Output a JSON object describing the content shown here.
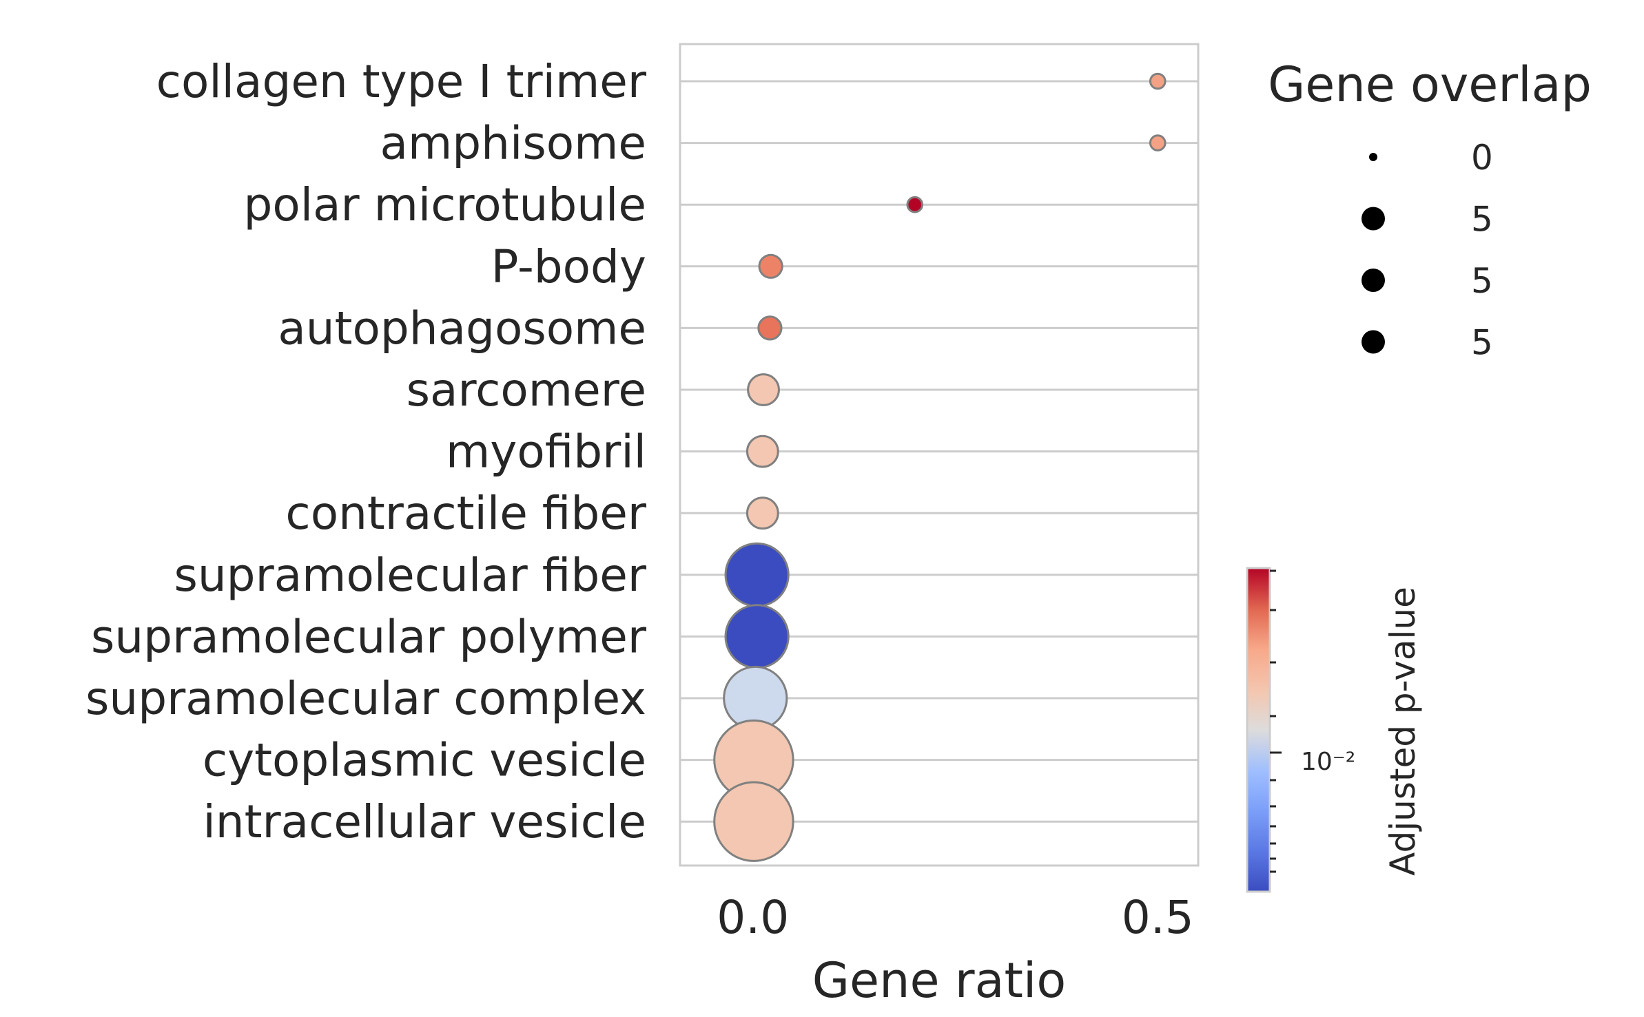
{
  "chart_data": {
    "type": "scatter",
    "subtype": "dot-plot",
    "xlabel": "Gene ratio",
    "xticks": [
      {
        "value": 0.0,
        "label": "0.0"
      },
      {
        "value": 0.5,
        "label": "0.5"
      }
    ],
    "xlim": [
      -0.09,
      0.55
    ],
    "categories": [
      "collagen type I trimer",
      "amphisome",
      "polar microtubule",
      "P-body",
      "autophagosome",
      "sarcomere",
      "myofibril",
      "contractile fiber",
      "supramolecular fiber",
      "supramolecular polymer",
      "supramolecular complex",
      "cytoplasmic vesicle",
      "intracellular vesicle"
    ],
    "points": [
      {
        "term": "collagen type I trimer",
        "gene_ratio": 0.5,
        "overlap": 1,
        "adj_p": 0.05,
        "color": "#f4a285"
      },
      {
        "term": "amphisome",
        "gene_ratio": 0.5,
        "overlap": 1,
        "adj_p": 0.05,
        "color": "#f4a285"
      },
      {
        "term": "polar microtubule",
        "gene_ratio": 0.2,
        "overlap": 1,
        "adj_p": 0.1,
        "color": "#b40426"
      },
      {
        "term": "P-body",
        "gene_ratio": 0.022,
        "overlap": 2,
        "adj_p": 0.07,
        "color": "#ed8366"
      },
      {
        "term": "autophagosome",
        "gene_ratio": 0.021,
        "overlap": 2,
        "adj_p": 0.075,
        "color": "#e7745b"
      },
      {
        "term": "sarcomere",
        "gene_ratio": 0.013,
        "overlap": 3,
        "adj_p": 0.03,
        "color": "#f3c7b1"
      },
      {
        "term": "myofibril",
        "gene_ratio": 0.012,
        "overlap": 3,
        "adj_p": 0.03,
        "color": "#f3c7b1"
      },
      {
        "term": "contractile fiber",
        "gene_ratio": 0.012,
        "overlap": 3,
        "adj_p": 0.03,
        "color": "#f3c7b1"
      },
      {
        "term": "supramolecular fiber",
        "gene_ratio": 0.005,
        "overlap": 7,
        "adj_p": 0.0017,
        "color": "#3b4cc0"
      },
      {
        "term": "supramolecular polymer",
        "gene_ratio": 0.005,
        "overlap": 7,
        "adj_p": 0.0017,
        "color": "#3b4cc0"
      },
      {
        "term": "supramolecular complex",
        "gene_ratio": 0.003,
        "overlap": 7,
        "adj_p": 0.012,
        "color": "#cdd9ec"
      },
      {
        "term": "cytoplasmic vesicle",
        "gene_ratio": 0.001,
        "overlap": 9,
        "adj_p": 0.03,
        "color": "#f3c7b1"
      },
      {
        "term": "intracellular vesicle",
        "gene_ratio": 0.001,
        "overlap": 9,
        "adj_p": 0.03,
        "color": "#f3c7b1"
      }
    ],
    "size_legend": {
      "title": "Gene overlap",
      "entries": [
        {
          "label": "0",
          "overlap": 0
        },
        {
          "label": "5",
          "overlap": 5
        },
        {
          "label": "5",
          "overlap": 5
        },
        {
          "label": "5",
          "overlap": 5
        }
      ]
    },
    "colorbar": {
      "title": "Adjusted p-value",
      "scale": "log",
      "tick_label": "10⁻²",
      "tick_value": 0.01,
      "colormap": "coolwarm",
      "range": [
        0.0015,
        0.1
      ]
    },
    "grid": "horizontal",
    "legend_position": "right"
  }
}
